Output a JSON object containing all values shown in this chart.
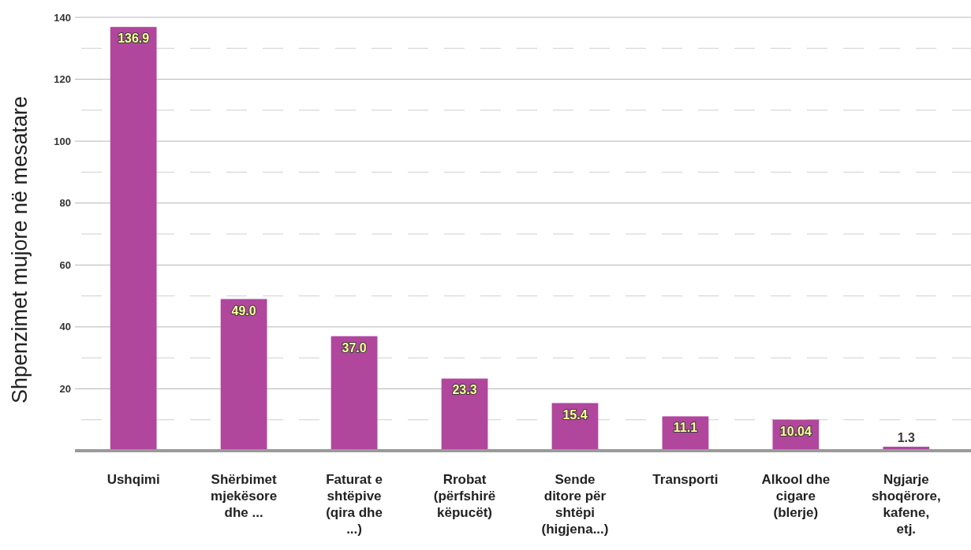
{
  "chart_data": {
    "type": "bar",
    "ylabel": "Shpenzimet mujore në mesatare",
    "categories": [
      "Ushqimi",
      "Shërbimet mjekësore dhe ...",
      "Faturat e shtëpive (qira dhe ...)",
      "Rrobat (përfshirë këpucët)",
      "Sende ditore për shtëpi (higjena...)",
      "Transporti",
      "Alkool dhe cigare (blerje)",
      "Ngjarje shoqërore, kafene, etj."
    ],
    "values": [
      136.9,
      49.0,
      37.0,
      23.3,
      15.4,
      11.1,
      10.04,
      1.3
    ],
    "value_labels": [
      "136.9",
      "49.0",
      "37.0",
      "23.3",
      "15.4",
      "11.1",
      "10.04",
      "1.3"
    ],
    "color": "#b0479d",
    "ylim": [
      0,
      140
    ],
    "yticks": [
      {
        "value": 0,
        "label": null
      },
      {
        "value": 10,
        "label": null
      },
      20,
      {
        "value": 30,
        "label": null
      },
      40,
      {
        "value": 50,
        "label": null
      },
      60,
      {
        "value": 70,
        "label": null
      },
      80,
      {
        "value": 90,
        "label": null
      },
      100,
      {
        "value": 110,
        "label": null
      },
      120,
      {
        "value": 130,
        "label": null
      },
      140
    ],
    "grid": "y"
  }
}
